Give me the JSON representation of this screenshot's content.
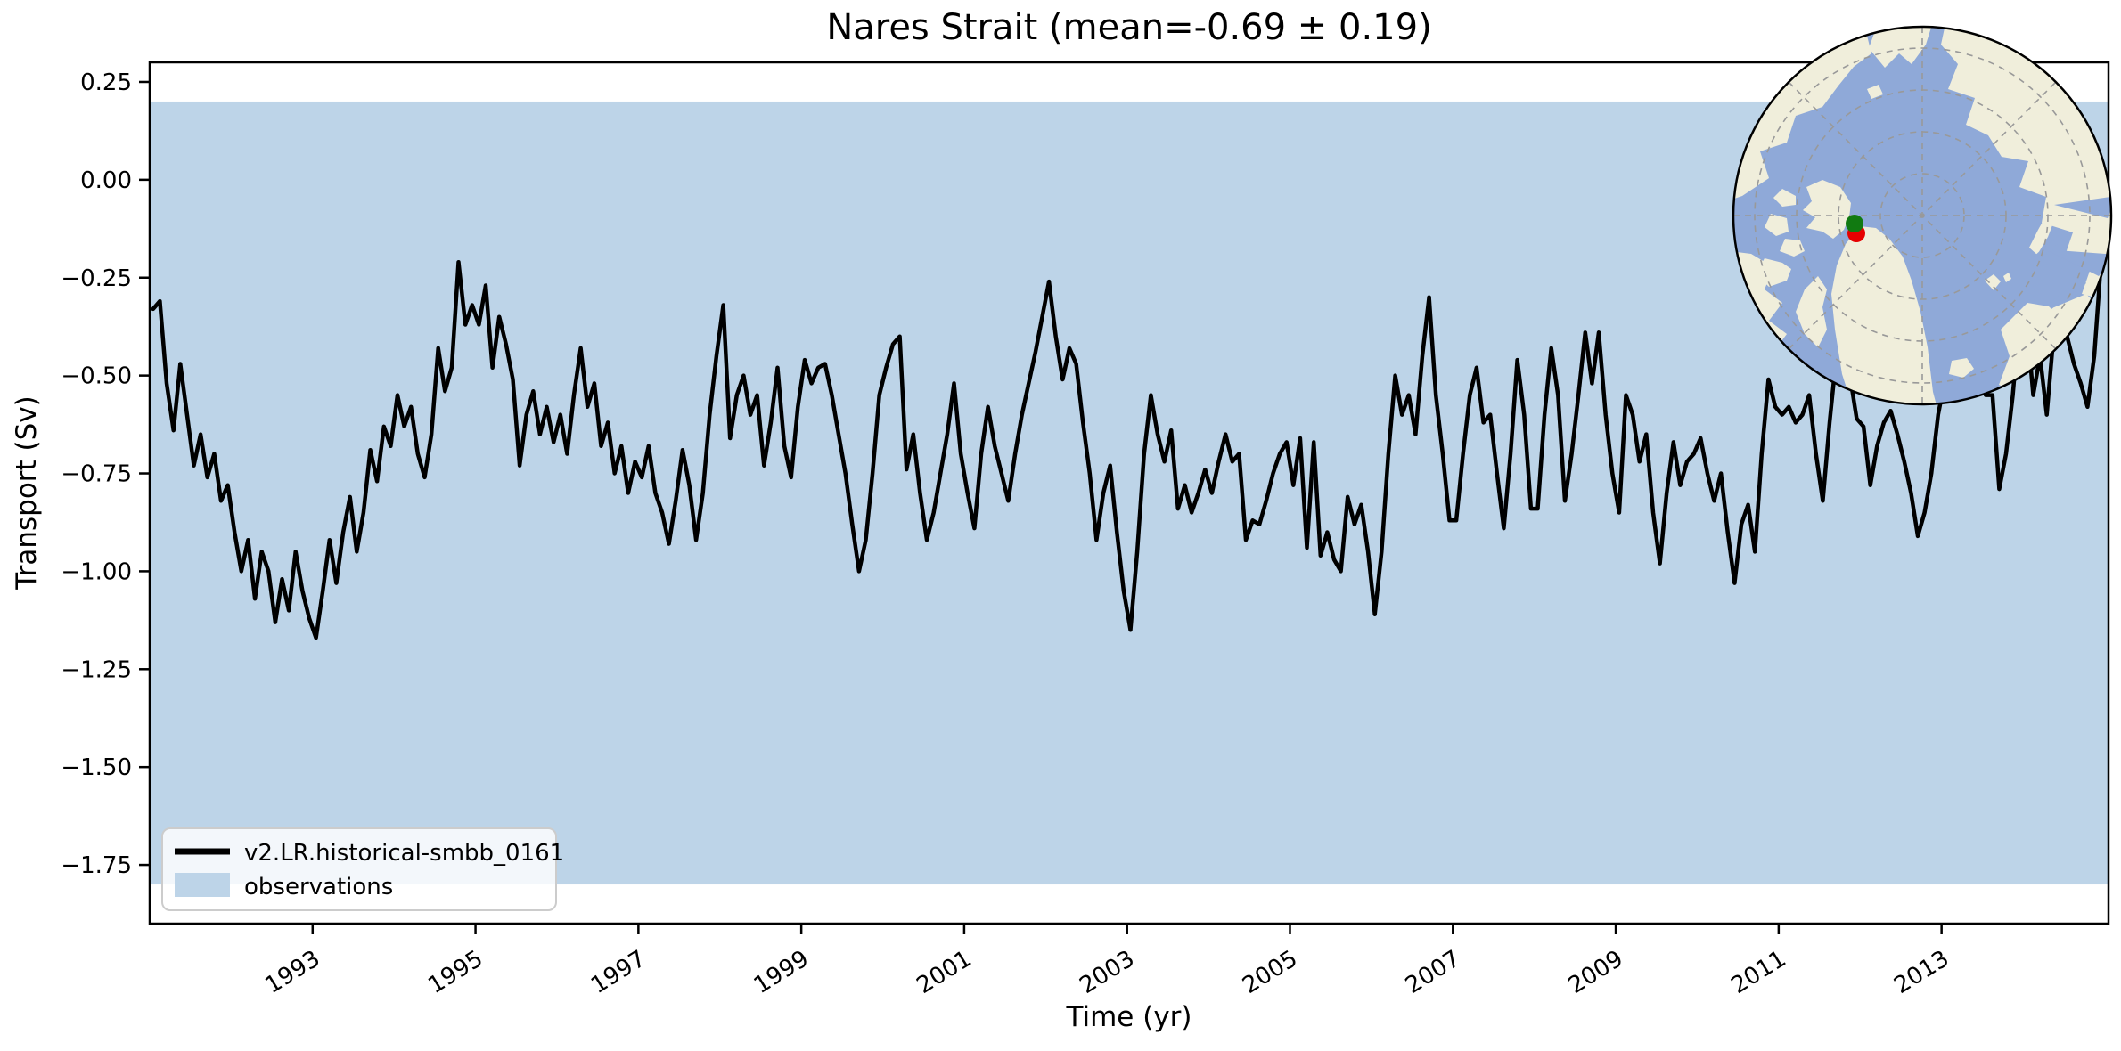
{
  "title": "Nares Strait (mean=-0.69 ± 0.19)",
  "axes": {
    "xlabel": "Time (yr)",
    "ylabel": "Transport (Sv)",
    "x_ticks": [
      "1993",
      "1995",
      "1997",
      "1999",
      "2001",
      "2003",
      "2005",
      "2007",
      "2009",
      "2011",
      "2013"
    ],
    "y_ticks": [
      "0.25",
      "0.00",
      "−0.25",
      "−0.50",
      "−0.75",
      "−1.00",
      "−1.25",
      "−1.50",
      "−1.75"
    ]
  },
  "legend": {
    "series_label": "v2.LR.historical-smbb_0161",
    "band_label": "observations"
  },
  "colors": {
    "series_line": "#000000",
    "observations_band": "#bdd4e8",
    "map_ocean": "#8fa9d8",
    "map_land": "#f0eedb",
    "map_graticule": "#999999",
    "marker_red": "#e60000",
    "marker_green": "#117a11"
  },
  "chart_data": {
    "type": "line",
    "title": "Nares Strait (mean=-0.69 ± 0.19)",
    "xlabel": "Time (yr)",
    "ylabel": "Transport (Sv)",
    "xlim": [
      1991.0,
      2015.05
    ],
    "ylim": [
      -1.9,
      0.3
    ],
    "x_tick_years": [
      1993,
      1995,
      1997,
      1999,
      2001,
      2003,
      2005,
      2007,
      2009,
      2011,
      2013
    ],
    "y_tick_values": [
      0.25,
      0.0,
      -0.25,
      -0.5,
      -0.75,
      -1.0,
      -1.25,
      -1.5,
      -1.75
    ],
    "grid": false,
    "legend_position": "lower left",
    "mean": -0.69,
    "std": 0.19,
    "observations_band": {
      "ymin": -1.8,
      "ymax": 0.2
    },
    "series": [
      {
        "name": "v2.LR.historical-smbb_0161",
        "x_start": 1991.0417,
        "x_step": 0.0833333,
        "values": [
          -0.33,
          -0.31,
          -0.52,
          -0.64,
          -0.47,
          -0.6,
          -0.73,
          -0.65,
          -0.76,
          -0.7,
          -0.82,
          -0.78,
          -0.9,
          -1.0,
          -0.92,
          -1.07,
          -0.95,
          -1.0,
          -1.13,
          -1.02,
          -1.1,
          -0.95,
          -1.05,
          -1.12,
          -1.17,
          -1.05,
          -0.92,
          -1.03,
          -0.9,
          -0.81,
          -0.95,
          -0.85,
          -0.69,
          -0.77,
          -0.63,
          -0.68,
          -0.55,
          -0.63,
          -0.58,
          -0.7,
          -0.76,
          -0.65,
          -0.43,
          -0.54,
          -0.48,
          -0.21,
          -0.37,
          -0.32,
          -0.37,
          -0.27,
          -0.48,
          -0.35,
          -0.42,
          -0.51,
          -0.73,
          -0.6,
          -0.54,
          -0.65,
          -0.58,
          -0.67,
          -0.6,
          -0.7,
          -0.55,
          -0.43,
          -0.58,
          -0.52,
          -0.68,
          -0.62,
          -0.75,
          -0.68,
          -0.8,
          -0.72,
          -0.76,
          -0.68,
          -0.8,
          -0.85,
          -0.93,
          -0.82,
          -0.69,
          -0.78,
          -0.92,
          -0.8,
          -0.6,
          -0.45,
          -0.32,
          -0.66,
          -0.55,
          -0.5,
          -0.6,
          -0.55,
          -0.73,
          -0.62,
          -0.48,
          -0.68,
          -0.76,
          -0.58,
          -0.46,
          -0.52,
          -0.48,
          -0.47,
          -0.55,
          -0.65,
          -0.75,
          -0.88,
          -1.0,
          -0.92,
          -0.75,
          -0.55,
          -0.48,
          -0.42,
          -0.4,
          -0.74,
          -0.65,
          -0.8,
          -0.92,
          -0.85,
          -0.75,
          -0.65,
          -0.52,
          -0.7,
          -0.8,
          -0.89,
          -0.7,
          -0.58,
          -0.68,
          -0.75,
          -0.82,
          -0.7,
          -0.6,
          -0.52,
          -0.44,
          -0.35,
          -0.26,
          -0.4,
          -0.51,
          -0.43,
          -0.47,
          -0.62,
          -0.75,
          -0.92,
          -0.8,
          -0.73,
          -0.9,
          -1.05,
          -1.15,
          -0.95,
          -0.7,
          -0.55,
          -0.65,
          -0.72,
          -0.64,
          -0.84,
          -0.78,
          -0.85,
          -0.8,
          -0.74,
          -0.8,
          -0.72,
          -0.65,
          -0.72,
          -0.7,
          -0.92,
          -0.87,
          -0.88,
          -0.82,
          -0.75,
          -0.7,
          -0.67,
          -0.78,
          -0.66,
          -0.94,
          -0.67,
          -0.96,
          -0.9,
          -0.97,
          -1.0,
          -0.81,
          -0.88,
          -0.83,
          -0.95,
          -1.11,
          -0.95,
          -0.7,
          -0.5,
          -0.6,
          -0.55,
          -0.65,
          -0.45,
          -0.3,
          -0.55,
          -0.7,
          -0.87,
          -0.87,
          -0.7,
          -0.55,
          -0.48,
          -0.62,
          -0.6,
          -0.75,
          -0.89,
          -0.7,
          -0.46,
          -0.6,
          -0.84,
          -0.84,
          -0.6,
          -0.43,
          -0.55,
          -0.82,
          -0.7,
          -0.55,
          -0.39,
          -0.52,
          -0.39,
          -0.6,
          -0.75,
          -0.85,
          -0.55,
          -0.6,
          -0.72,
          -0.65,
          -0.85,
          -0.98,
          -0.8,
          -0.67,
          -0.78,
          -0.72,
          -0.7,
          -0.66,
          -0.75,
          -0.82,
          -0.75,
          -0.9,
          -1.03,
          -0.88,
          -0.83,
          -0.95,
          -0.7,
          -0.51,
          -0.58,
          -0.6,
          -0.58,
          -0.62,
          -0.6,
          -0.55,
          -0.7,
          -0.82,
          -0.62,
          -0.45,
          -0.28,
          -0.5,
          -0.61,
          -0.63,
          -0.78,
          -0.68,
          -0.62,
          -0.59,
          -0.65,
          -0.72,
          -0.8,
          -0.91,
          -0.85,
          -0.75,
          -0.6,
          -0.51,
          -0.42,
          -0.35,
          -0.45,
          -0.49,
          -0.52,
          -0.55,
          -0.55,
          -0.79,
          -0.7,
          -0.55,
          -0.35,
          -0.35,
          -0.55,
          -0.45,
          -0.6,
          -0.4,
          -0.23,
          -0.4,
          -0.47,
          -0.52,
          -0.58,
          -0.45,
          -0.21
        ]
      }
    ]
  }
}
